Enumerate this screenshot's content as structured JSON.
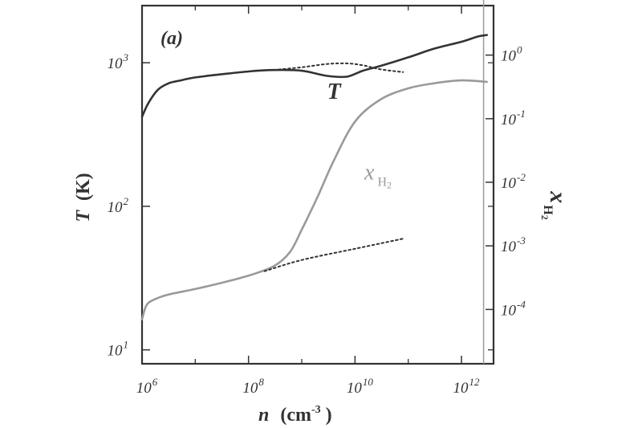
{
  "panel_label": "(a)",
  "chart_data": {
    "type": "line",
    "title": "",
    "xlabel": "n (cm-3)",
    "xlabel_parts": {
      "main": "n",
      "unit": "(cm",
      "unit_exp": "-3",
      "unit_close": ")"
    },
    "xscale": "log",
    "xlim": [
      1000000.0,
      4000000000000.0
    ],
    "xticks": [
      {
        "value": 1000000.0,
        "base": "10",
        "exp": "6"
      },
      {
        "value": 100000000.0,
        "base": "10",
        "exp": "8"
      },
      {
        "value": 10000000000.0,
        "base": "10",
        "exp": "10"
      },
      {
        "value": 1000000000000.0,
        "base": "10",
        "exp": "12"
      }
    ],
    "ylabel_left": "T (K)",
    "ylabel_left_parts": {
      "main": "T",
      "unit": "(K)"
    },
    "yscale_left": "log",
    "ylim_left": [
      8,
      2500
    ],
    "yticks_left": [
      {
        "value": 10,
        "base": "10",
        "exp": "1"
      },
      {
        "value": 100,
        "base": "10",
        "exp": "2"
      },
      {
        "value": 1000,
        "base": "10",
        "exp": "3"
      }
    ],
    "ylabel_right": "x H2",
    "ylabel_right_parts": {
      "main": "x",
      "sub": "H",
      "subsub": "2"
    },
    "yscale_right": "log",
    "ylim_right": [
      1.4e-05,
      6
    ],
    "yticks_right": [
      {
        "value": 0.0001,
        "base": "10",
        "exp": "-4"
      },
      {
        "value": 0.001,
        "base": "10",
        "exp": "-3"
      },
      {
        "value": 0.01,
        "base": "10",
        "exp": "-2"
      },
      {
        "value": 0.1,
        "base": "10",
        "exp": "-1"
      },
      {
        "value": 1,
        "base": "10",
        "exp": "0"
      }
    ],
    "vertical_line_x": 2600000000000.0,
    "grid": false,
    "series": [
      {
        "name": "T",
        "axis": "left",
        "style": "solid",
        "color": "#333333",
        "x": [
          1000000.0,
          1300000.0,
          2000000.0,
          3200000.0,
          5000000.0,
          10000000.0,
          30000000.0,
          100000000.0,
          300000000.0,
          1000000000.0,
          3000000000.0,
          7000000000.0,
          14000000000.0,
          30000000000.0,
          100000000000.0,
          300000000000.0,
          1000000000000.0,
          2000000000000.0,
          3000000000000.0
        ],
        "y": [
          420,
          520,
          650,
          720,
          750,
          790,
          830,
          870,
          890,
          880,
          810,
          800,
          880,
          950,
          1090,
          1250,
          1400,
          1520,
          1560
        ]
      },
      {
        "name": "T",
        "axis": "left",
        "style": "dotted",
        "color": "#333333",
        "x": [
          300000000.0,
          1000000000.0,
          3000000000.0,
          7000000000.0,
          14000000000.0,
          30000000000.0,
          80000000000.0
        ],
        "y": [
          890,
          930,
          980,
          990,
          960,
          900,
          860
        ]
      },
      {
        "name": "x H2",
        "axis": "right",
        "style": "solid",
        "color": "#9a9a9a",
        "x": [
          1000000.0,
          1200000.0,
          1600000.0,
          3000000.0,
          10000000.0,
          30000000.0,
          100000000.0,
          300000000.0,
          600000000.0,
          1000000000.0,
          2000000000.0,
          4000000000.0,
          10000000000.0,
          30000000000.0,
          100000000000.0,
          300000000000.0,
          1000000000000.0,
          3000000000000.0
        ],
        "y": [
          7e-05,
          0.000115,
          0.00014,
          0.00017,
          0.00021,
          0.00026,
          0.00034,
          0.00048,
          0.0008,
          0.0018,
          0.006,
          0.022,
          0.09,
          0.2,
          0.3,
          0.36,
          0.4,
          0.38
        ]
      },
      {
        "name": "x H2",
        "axis": "right",
        "style": "dotted",
        "color": "#333333",
        "x": [
          200000000.0,
          1000000000.0,
          10000000000.0,
          80000000000.0
        ],
        "y": [
          0.0004,
          0.0006,
          0.0009,
          0.0013
        ]
      }
    ],
    "annotations": [
      {
        "text": "T",
        "series": "T",
        "at_x": 3000000000.0,
        "at_y_left": 560
      },
      {
        "text_main": "x",
        "text_sub": "H",
        "text_subsub": "2",
        "series": "x H2",
        "at_x": 15000000000.0,
        "at_y_right": 0.011
      }
    ]
  }
}
